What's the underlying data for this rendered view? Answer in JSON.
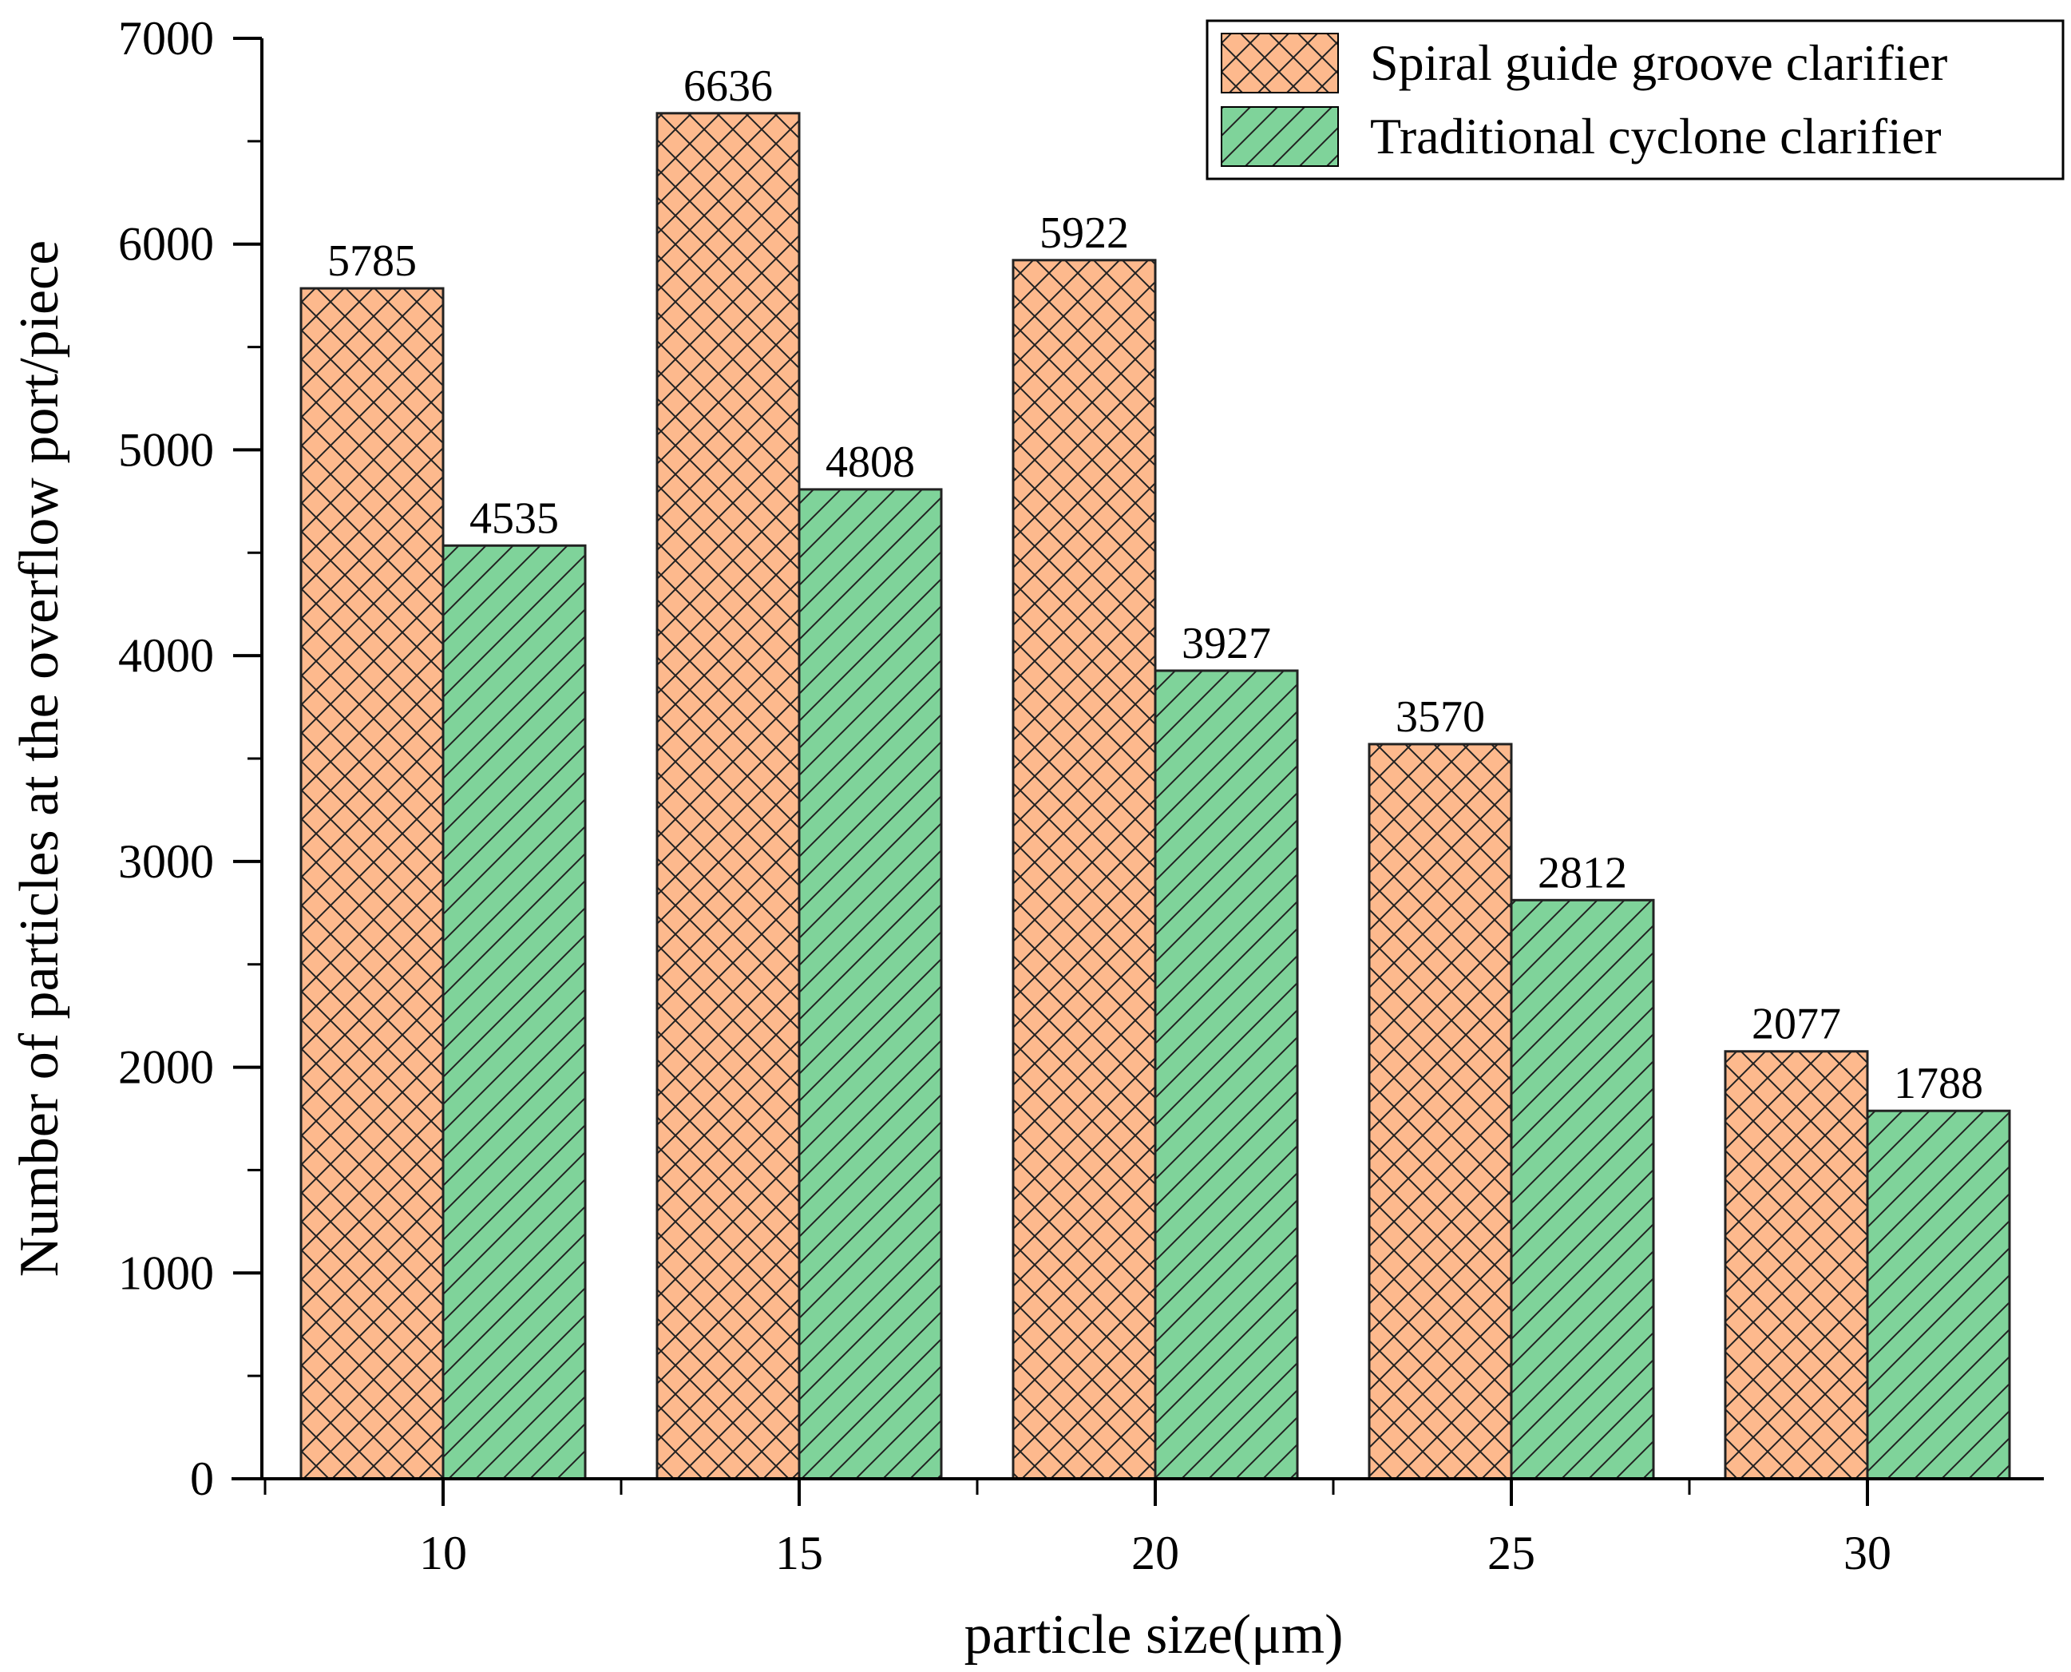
{
  "chart_data": {
    "type": "bar",
    "title": "",
    "xlabel": "particle size(μm)",
    "ylabel": "Number of particles at the overflow port/piece",
    "categories": [
      "10",
      "15",
      "20",
      "25",
      "30"
    ],
    "ylim": [
      0,
      7000
    ],
    "yticks": [
      0,
      1000,
      2000,
      3000,
      4000,
      5000,
      6000,
      7000
    ],
    "grid": false,
    "legend_position": "top-right",
    "series": [
      {
        "name": "Spiral guide groove clarifier",
        "values": [
          5785,
          6636,
          5922,
          3570,
          2077
        ],
        "color": "#FDB98D",
        "hatch": "crosshatch"
      },
      {
        "name": "Traditional cyclone clarifier",
        "values": [
          4535,
          4808,
          3927,
          2812,
          1788
        ],
        "color": "#7FD39A",
        "hatch": "diagonal"
      }
    ]
  }
}
